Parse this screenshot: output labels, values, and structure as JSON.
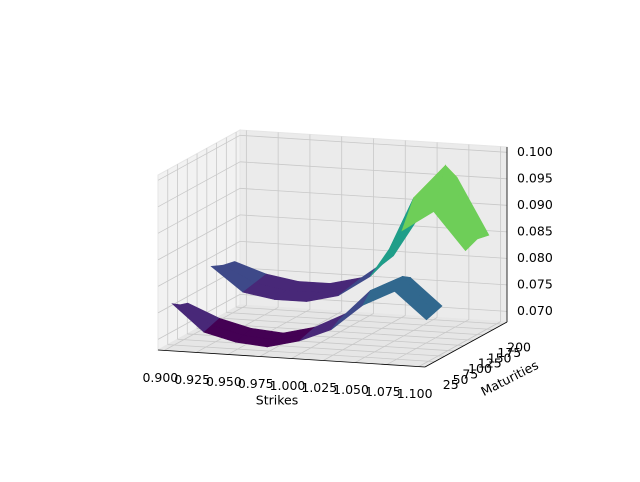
{
  "chart_data": {
    "type": "surface3d",
    "xlabel": "Strikes",
    "ylabel": "Maturities",
    "colormap": "viridis",
    "grid": true,
    "xlim": [
      0.895,
      1.105
    ],
    "xticks": [
      {
        "value": 0.9,
        "label": "0.900"
      },
      {
        "value": 0.925,
        "label": "0.925"
      },
      {
        "value": 0.95,
        "label": "0.950"
      },
      {
        "value": 0.975,
        "label": "0.975"
      },
      {
        "value": 1.0,
        "label": "1.000"
      },
      {
        "value": 1.025,
        "label": "1.025"
      },
      {
        "value": 1.05,
        "label": "1.050"
      },
      {
        "value": 1.075,
        "label": "1.075"
      },
      {
        "value": 1.1,
        "label": "1.100"
      }
    ],
    "ylim": [
      0,
      210
    ],
    "yticks": [
      25,
      50,
      75,
      100,
      125,
      150,
      175,
      200
    ],
    "zlim": [
      0.068,
      0.101
    ],
    "zticks": [
      {
        "value": 0.07,
        "label": "0.070"
      },
      {
        "value": 0.075,
        "label": "0.075"
      },
      {
        "value": 0.08,
        "label": "0.080"
      },
      {
        "value": 0.085,
        "label": "0.085"
      },
      {
        "value": 0.09,
        "label": "0.090"
      },
      {
        "value": 0.095,
        "label": "0.095"
      },
      {
        "value": 0.1,
        "label": "0.100"
      }
    ],
    "x": [
      0.9,
      0.925,
      0.95,
      0.975,
      1.0,
      1.025,
      1.05,
      1.075,
      1.1
    ],
    "surfaces": [
      {
        "y": [
          20,
          40,
          60
        ],
        "z": [
          [
            0.076,
            0.071,
            0.0695,
            0.069,
            0.0705,
            0.073,
            0.078,
            0.081,
            0.076
          ],
          [
            0.075,
            0.0715,
            0.07,
            0.0695,
            0.071,
            0.074,
            0.08,
            0.083,
            0.0765
          ],
          [
            0.0745,
            0.072,
            0.0705,
            0.07,
            0.0715,
            0.0745,
            0.079,
            0.082,
            0.077
          ]
        ]
      },
      {
        "y": [
          120,
          150,
          180
        ],
        "z": [
          [
            0.079,
            0.0745,
            0.0735,
            0.0735,
            0.075,
            0.079,
            0.088,
            0.092,
            0.085
          ],
          [
            0.078,
            0.075,
            0.074,
            0.074,
            0.0755,
            0.08,
            0.093,
            0.0995,
            0.086
          ],
          [
            0.0775,
            0.0755,
            0.0745,
            0.0745,
            0.076,
            0.0805,
            0.09,
            0.096,
            0.0855
          ]
        ]
      }
    ]
  }
}
